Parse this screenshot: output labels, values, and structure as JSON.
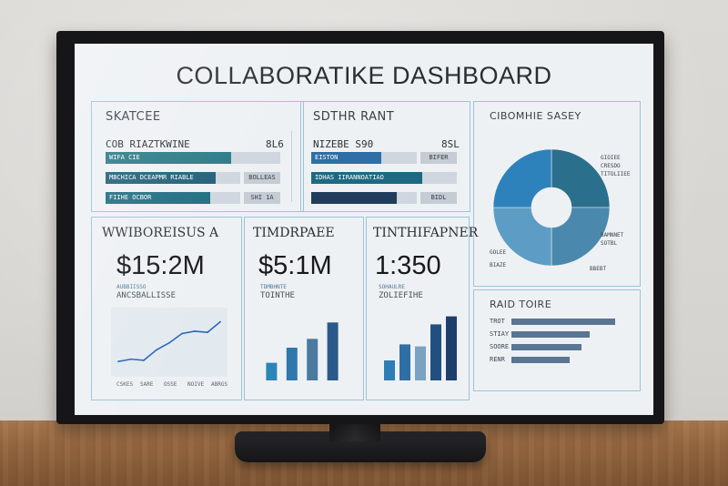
{
  "dashboard": {
    "title": "COLLABORATIKE DASHBOARD",
    "top_left": {
      "label": "SKATCEE",
      "rows": [
        {
          "name": "COB RIAZTKWINE",
          "value": "8L6",
          "bar_text": "WIFA CIE",
          "box": "",
          "fill": 0.72,
          "color": "#2a7a86"
        },
        {
          "name": "",
          "value": "",
          "bar_text": "MBCHICA DCEAPMR RIABLE",
          "box": "BOLLEAS",
          "fill": 0.82,
          "color": "#1f5f78"
        },
        {
          "name": "",
          "value": "",
          "bar_text": "FIIHE OCBOR",
          "box": "SHI 1A",
          "fill": 0.78,
          "color": "#1e6c80"
        }
      ]
    },
    "top_mid": {
      "label": "SDTHR RANT",
      "rows": [
        {
          "name": "NIZEBE S90",
          "value": "8SL",
          "bar_text": "EISTON",
          "box": "BIFER",
          "fill": 0.66,
          "color": "#2f6fa6"
        },
        {
          "name": "",
          "value": "",
          "bar_text": "IDHAS IIRANNOATIAO",
          "box": "",
          "fill": 0.76,
          "color": "#1d6982"
        },
        {
          "name": "",
          "value": "",
          "bar_text": "",
          "box": "BIDL",
          "fill": 0.81,
          "color": "#203e5c"
        }
      ]
    },
    "donut": {
      "label": "CIBOMHIE SASEY",
      "slices": [
        {
          "value": 25,
          "color": "#2a6f8c"
        },
        {
          "value": 25,
          "color": "#4b88ad"
        },
        {
          "value": 25,
          "color": "#5d9cc4"
        },
        {
          "value": 25,
          "color": "#2e82bc"
        }
      ],
      "labels": [
        "GIOIEE",
        "CRESDO",
        "TITOLIIEE",
        "BAMNNET",
        "SOTBL",
        "BBEBT",
        "GOLEE",
        "BIAZE"
      ]
    },
    "kpis": [
      {
        "label": "WWIBOREISUS A",
        "value": "$15:2M",
        "sub": "ANCSBALLISSE",
        "legend": "AUBBIISSO"
      },
      {
        "label": "TIMDRPAEE",
        "value": "$5:1M",
        "sub": "TOINTHE",
        "legend": "TDMBHNTE"
      },
      {
        "label": "TINTHIFAPNER",
        "value": "1:350",
        "sub": "ZOLIEFIHE",
        "legend": "SOHAULRE"
      }
    ],
    "line_chart": {
      "x": [
        1,
        2,
        3,
        4,
        5,
        6,
        7,
        8,
        9
      ],
      "y": [
        10,
        12,
        11,
        20,
        26,
        34,
        36,
        35,
        44
      ],
      "xlabels": [
        "CSKES",
        "SARE",
        "OSSE",
        "NOIVE",
        "ABRGS"
      ]
    },
    "bar_chart_1": {
      "values": [
        14,
        26,
        33,
        46
      ]
    },
    "bar_chart_2": {
      "values": [
        20,
        36,
        34,
        56,
        64
      ]
    },
    "ranking": {
      "label": "RAID TOIRE",
      "bars": [
        {
          "name": "TROT",
          "value": 0.95
        },
        {
          "name": "STIAY",
          "value": 0.72
        },
        {
          "name": "SOORE",
          "value": 0.64
        },
        {
          "name": "RENR",
          "value": 0.53
        }
      ]
    }
  }
}
